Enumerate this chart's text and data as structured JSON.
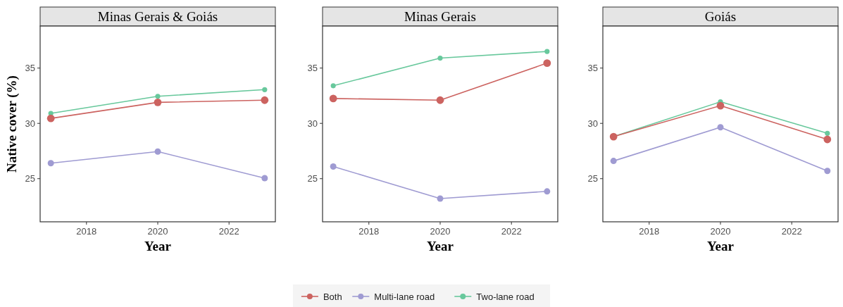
{
  "chart_data": [
    {
      "type": "line",
      "title": "Minas Gerais & Goiás",
      "xlabel": "Year",
      "ylabel": "Native cover (%)",
      "x": [
        2017,
        2020,
        2023
      ],
      "xlim": [
        2016.7,
        2023.3
      ],
      "xticks": [
        2018,
        2020,
        2022
      ],
      "ylim": [
        21.1,
        38.8
      ],
      "yticks": [
        25,
        30,
        35
      ],
      "grid": false,
      "marker": "circle",
      "legend": "bottom",
      "series": [
        {
          "name": "Both",
          "color": "#cc6360",
          "values": [
            30.45,
            31.9,
            32.1
          ]
        },
        {
          "name": "Multi-lane road",
          "color": "#9f9bd2",
          "values": [
            26.4,
            27.45,
            25.05
          ]
        },
        {
          "name": "Two-lane road",
          "color": "#68c89c",
          "values": [
            30.9,
            32.45,
            33.05
          ]
        }
      ]
    },
    {
      "type": "line",
      "title": "Minas Gerais",
      "xlabel": "Year",
      "x": [
        2017,
        2020,
        2023
      ],
      "xlim": [
        2016.7,
        2023.3
      ],
      "xticks": [
        2018,
        2020,
        2022
      ],
      "ylim": [
        21.1,
        38.8
      ],
      "yticks": [
        25,
        30,
        35
      ],
      "grid": false,
      "marker": "circle",
      "series": [
        {
          "color": "#cc6360",
          "values": [
            32.25,
            32.1,
            35.45
          ]
        },
        {
          "color": "#9f9bd2",
          "values": [
            26.1,
            23.2,
            23.85
          ]
        },
        {
          "color": "#68c89c",
          "values": [
            33.4,
            35.9,
            36.5
          ]
        }
      ]
    },
    {
      "type": "line",
      "title": "Goiás",
      "xlabel": "Year",
      "x": [
        2017,
        2020,
        2023
      ],
      "xlim": [
        2016.7,
        2023.3
      ],
      "xticks": [
        2018,
        2020,
        2022
      ],
      "ylim": [
        21.1,
        38.8
      ],
      "yticks": [
        25,
        30,
        35
      ],
      "grid": false,
      "marker": "circle",
      "series": [
        {
          "color": "#cc6360",
          "values": [
            28.8,
            31.6,
            28.55
          ]
        },
        {
          "color": "#9f9bd2",
          "values": [
            26.6,
            29.65,
            25.7
          ]
        },
        {
          "color": "#68c89c",
          "values": [
            28.8,
            31.95,
            29.1
          ]
        }
      ]
    }
  ]
}
